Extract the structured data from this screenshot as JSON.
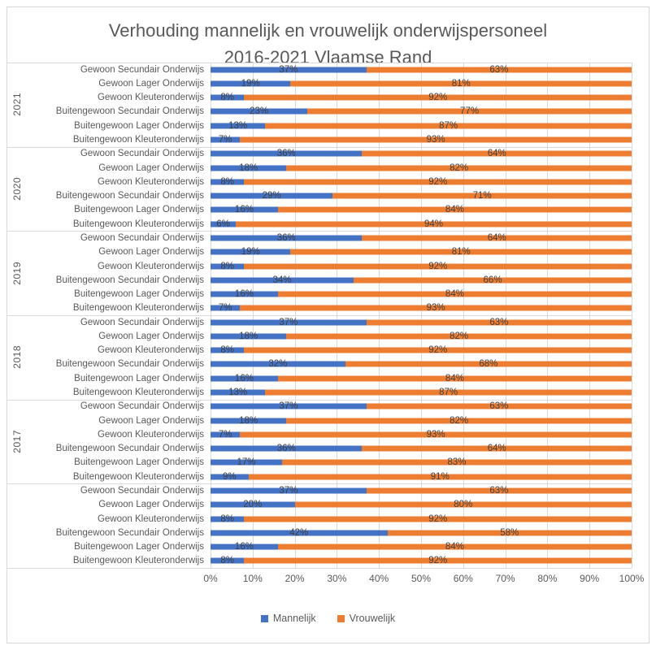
{
  "title": {
    "line1": "Verhouding mannelijk en vrouwelijk onderwijspersoneel",
    "line2": "2016-2021 Vlaamse Rand"
  },
  "legend": [
    {
      "label": "Mannelijk",
      "color": "#4472C4"
    },
    {
      "label": "Vrouwelijk",
      "color": "#ED7D31"
    }
  ],
  "chart_data": {
    "type": "bar",
    "orientation": "horizontal",
    "stacked": true,
    "title": "Verhouding mannelijk en vrouwelijk onderwijspersoneel 2016-2021 Vlaamse Rand",
    "series_names": [
      "Mannelijk",
      "Vrouwelijk"
    ],
    "colors": {
      "mannelijk": "#4472C4",
      "vrouwelijk": "#ED7D31"
    },
    "xlim": [
      0,
      100
    ],
    "x_ticks": [
      "0%",
      "10%",
      "20%",
      "30%",
      "40%",
      "50%",
      "60%",
      "70%",
      "80%",
      "90%",
      "100%"
    ],
    "grid": true,
    "legend_position": "bottom",
    "groups": [
      {
        "year": "2021",
        "rows": [
          {
            "label": "Gewoon Secundair Onderwijs",
            "mannelijk": 37,
            "vrouwelijk": 63
          },
          {
            "label": "Gewoon Lager Onderwijs",
            "mannelijk": 19,
            "vrouwelijk": 81
          },
          {
            "label": "Gewoon Kleuteronderwijs",
            "mannelijk": 8,
            "vrouwelijk": 92
          },
          {
            "label": "Buitengewoon Secundair Onderwijs",
            "mannelijk": 23,
            "vrouwelijk": 77
          },
          {
            "label": "Buitengewoon Lager Onderwijs",
            "mannelijk": 13,
            "vrouwelijk": 87
          },
          {
            "label": "Buitengewoon Kleuteronderwijs",
            "mannelijk": 7,
            "vrouwelijk": 93
          }
        ]
      },
      {
        "year": "2020",
        "rows": [
          {
            "label": "Gewoon Secundair Onderwijs",
            "mannelijk": 36,
            "vrouwelijk": 64
          },
          {
            "label": "Gewoon Lager Onderwijs",
            "mannelijk": 18,
            "vrouwelijk": 82
          },
          {
            "label": "Gewoon Kleuteronderwijs",
            "mannelijk": 8,
            "vrouwelijk": 92
          },
          {
            "label": "Buitengewoon Secundair Onderwijs",
            "mannelijk": 29,
            "vrouwelijk": 71
          },
          {
            "label": "Buitengewoon Lager Onderwijs",
            "mannelijk": 16,
            "vrouwelijk": 84
          },
          {
            "label": "Buitengewoon Kleuteronderwijs",
            "mannelijk": 6,
            "vrouwelijk": 94
          }
        ]
      },
      {
        "year": "2019",
        "rows": [
          {
            "label": "Gewoon Secundair Onderwijs",
            "mannelijk": 36,
            "vrouwelijk": 64
          },
          {
            "label": "Gewoon Lager Onderwijs",
            "mannelijk": 19,
            "vrouwelijk": 81
          },
          {
            "label": "Gewoon Kleuteronderwijs",
            "mannelijk": 8,
            "vrouwelijk": 92
          },
          {
            "label": "Buitengewoon Secundair Onderwijs",
            "mannelijk": 34,
            "vrouwelijk": 66
          },
          {
            "label": "Buitengewoon Lager Onderwijs",
            "mannelijk": 16,
            "vrouwelijk": 84
          },
          {
            "label": "Buitengewoon Kleuteronderwijs",
            "mannelijk": 7,
            "vrouwelijk": 93
          }
        ]
      },
      {
        "year": "2018",
        "rows": [
          {
            "label": "Gewoon Secundair Onderwijs",
            "mannelijk": 37,
            "vrouwelijk": 63
          },
          {
            "label": "Gewoon Lager Onderwijs",
            "mannelijk": 18,
            "vrouwelijk": 82
          },
          {
            "label": "Gewoon Kleuteronderwijs",
            "mannelijk": 8,
            "vrouwelijk": 92
          },
          {
            "label": "Buitengewoon Secundair Onderwijs",
            "mannelijk": 32,
            "vrouwelijk": 68
          },
          {
            "label": "Buitengewoon Lager Onderwijs",
            "mannelijk": 16,
            "vrouwelijk": 84
          },
          {
            "label": "Buitengewoon Kleuteronderwijs",
            "mannelijk": 13,
            "vrouwelijk": 87
          }
        ]
      },
      {
        "year": "2017",
        "rows": [
          {
            "label": "Gewoon Secundair Onderwijs",
            "mannelijk": 37,
            "vrouwelijk": 63
          },
          {
            "label": "Gewoon Lager Onderwijs",
            "mannelijk": 18,
            "vrouwelijk": 82
          },
          {
            "label": "Gewoon Kleuteronderwijs",
            "mannelijk": 7,
            "vrouwelijk": 93
          },
          {
            "label": "Buitengewoon Secundair Onderwijs",
            "mannelijk": 36,
            "vrouwelijk": 64
          },
          {
            "label": "Buitengewoon Lager Onderwijs",
            "mannelijk": 17,
            "vrouwelijk": 83
          },
          {
            "label": "Buitengewoon Kleuteronderwijs",
            "mannelijk": 9,
            "vrouwelijk": 91
          }
        ]
      },
      {
        "year": "",
        "rows": [
          {
            "label": "Gewoon Secundair Onderwijs",
            "mannelijk": 37,
            "vrouwelijk": 63
          },
          {
            "label": "Gewoon Lager Onderwijs",
            "mannelijk": 20,
            "vrouwelijk": 80
          },
          {
            "label": "Gewoon Kleuteronderwijs",
            "mannelijk": 8,
            "vrouwelijk": 92
          },
          {
            "label": "Buitengewoon Secundair Onderwijs",
            "mannelijk": 42,
            "vrouwelijk": 58
          },
          {
            "label": "Buitengewoon Lager Onderwijs",
            "mannelijk": 16,
            "vrouwelijk": 84
          },
          {
            "label": "Buitengewoon Kleuteronderwijs",
            "mannelijk": 8,
            "vrouwelijk": 92
          }
        ]
      }
    ]
  }
}
